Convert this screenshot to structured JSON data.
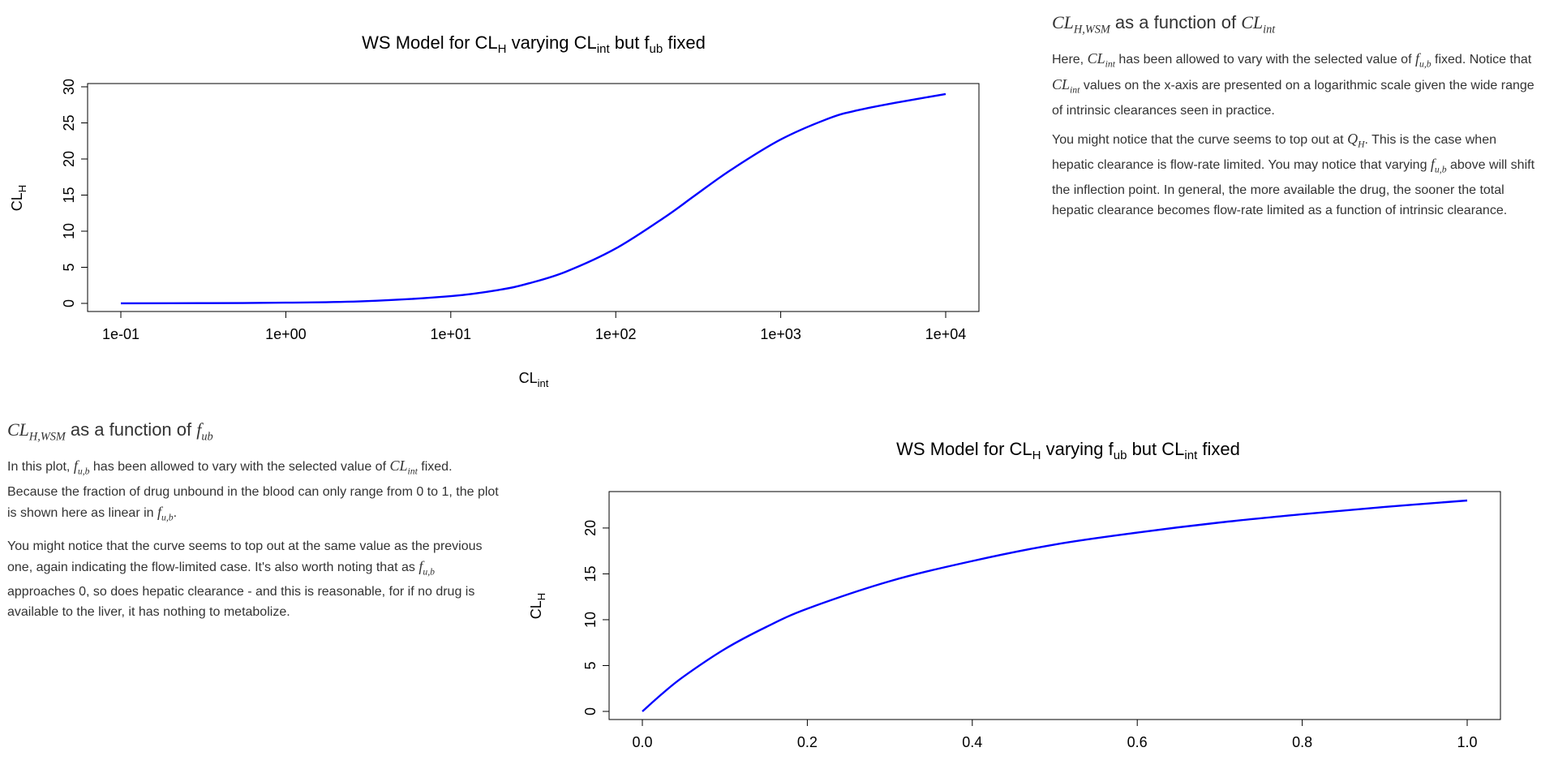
{
  "chart_data": [
    {
      "type": "line",
      "title": "WS Model for CLH varying CLint but fub fixed",
      "title_parts": {
        "a": "WS Model for CL",
        "a_sub": "H",
        "b": " varying CL",
        "b_sub": "int",
        "c": " but f",
        "c_sub": "ub",
        "d": " fixed"
      },
      "xlabel": "CLint",
      "xlabel_parts": {
        "main": "CL",
        "sub": "int"
      },
      "ylabel": "CLH",
      "ylabel_parts": {
        "main": "CL",
        "sub": "H"
      },
      "xscale": "log",
      "xlim": [
        0.1,
        10000
      ],
      "ylim": [
        0,
        30
      ],
      "x_ticks": [
        "1e-01",
        "1e+00",
        "1e+01",
        "1e+02",
        "1e+03",
        "1e+04"
      ],
      "y_ticks": [
        "0",
        "5",
        "10",
        "15",
        "20",
        "25",
        "30"
      ],
      "grid": false,
      "line_color": "#0000ff",
      "x": [
        0.1,
        0.3,
        1,
        3,
        10,
        20,
        30,
        50,
        100,
        200,
        300,
        500,
        1000,
        2000,
        3000,
        5000,
        10000
      ],
      "y": [
        0.01,
        0.03,
        0.1,
        0.3,
        1.0,
        1.9,
        2.8,
        4.4,
        7.6,
        12.0,
        14.9,
        18.5,
        22.7,
        25.7,
        26.8,
        27.8,
        29.0
      ]
    },
    {
      "type": "line",
      "title": "WS Model for CLH varying fub but CLint fixed",
      "title_parts": {
        "a": "WS Model for CL",
        "a_sub": "H",
        "b": " varying f",
        "b_sub": "ub",
        "c": " but CL",
        "c_sub": "int",
        "d": " fixed"
      },
      "xlabel": "",
      "ylabel": "CLH",
      "ylabel_parts": {
        "main": "CL",
        "sub": "H"
      },
      "xlim": [
        0,
        1
      ],
      "ylim": [
        0,
        23
      ],
      "x_ticks": [
        "0.0",
        "0.2",
        "0.4",
        "0.6",
        "0.8",
        "1.0"
      ],
      "y_ticks": [
        "0",
        "5",
        "10",
        "15",
        "20"
      ],
      "grid": false,
      "line_color": "#0000ff",
      "x": [
        0,
        0.025,
        0.05,
        0.1,
        0.15,
        0.2,
        0.3,
        0.4,
        0.5,
        0.6,
        0.7,
        0.8,
        0.9,
        1.0
      ],
      "y": [
        0,
        2.0,
        3.8,
        6.8,
        9.2,
        11.2,
        14.2,
        16.4,
        18.2,
        19.5,
        20.6,
        21.5,
        22.3,
        23.0
      ]
    }
  ],
  "section1": {
    "heading": {
      "expr_main": "CL",
      "expr_sub": "H,WSM",
      "text": " as a function of ",
      "expr2_main": "CL",
      "expr2_sub": "int"
    },
    "p1": {
      "t1": "Here, ",
      "m1_main": "CL",
      "m1_sub": "int",
      "t2": " has been allowed to vary with the selected value of ",
      "m2_main": "f",
      "m2_sub": "u,b",
      "t3": " fixed. Notice that ",
      "m3_main": "CL",
      "m3_sub": "int",
      "t4": " values on the x-axis are presented on a logarithmic scale given the wide range of intrinsic clearances seen in practice."
    },
    "p2": {
      "t1": "You might notice that the curve seems to top out at ",
      "m1_main": "Q",
      "m1_sub": "H",
      "t2": ". This is the case when hepatic clearance is flow-rate limited. You may notice that varying ",
      "m2_main": "f",
      "m2_sub": "u,b",
      "t3": " above will shift the inflection point. In general, the more available the drug, the sooner the total hepatic clearance becomes flow-rate limited as a function of intrinsic clearance."
    }
  },
  "section2": {
    "heading": {
      "expr_main": "CL",
      "expr_sub": "H,WSM",
      "text": " as a function of ",
      "expr2_main": "f",
      "expr2_sub": "ub"
    },
    "p1": {
      "t1": "In this plot, ",
      "m1_main": "f",
      "m1_sub": "u,b",
      "t2": " has been allowed to vary with the selected value of ",
      "m2_main": "CL",
      "m2_sub": "int",
      "t3": " fixed. Because the fraction of drug unbound in the blood can only range from 0 to 1, the plot is shown here as linear in ",
      "m3_main": "f",
      "m3_sub": "u,b",
      "t4": "."
    },
    "p2": {
      "t1": "You might notice that the curve seems to top out at the same value as the previous one, again indicating the flow-limited case. It's also worth noting that as ",
      "m1_main": "f",
      "m1_sub": "u,b",
      "t2": " approaches 0, so does hepatic clearance - and this is reasonable, for if no drug is available to the liver, it has nothing to metabolize."
    }
  }
}
